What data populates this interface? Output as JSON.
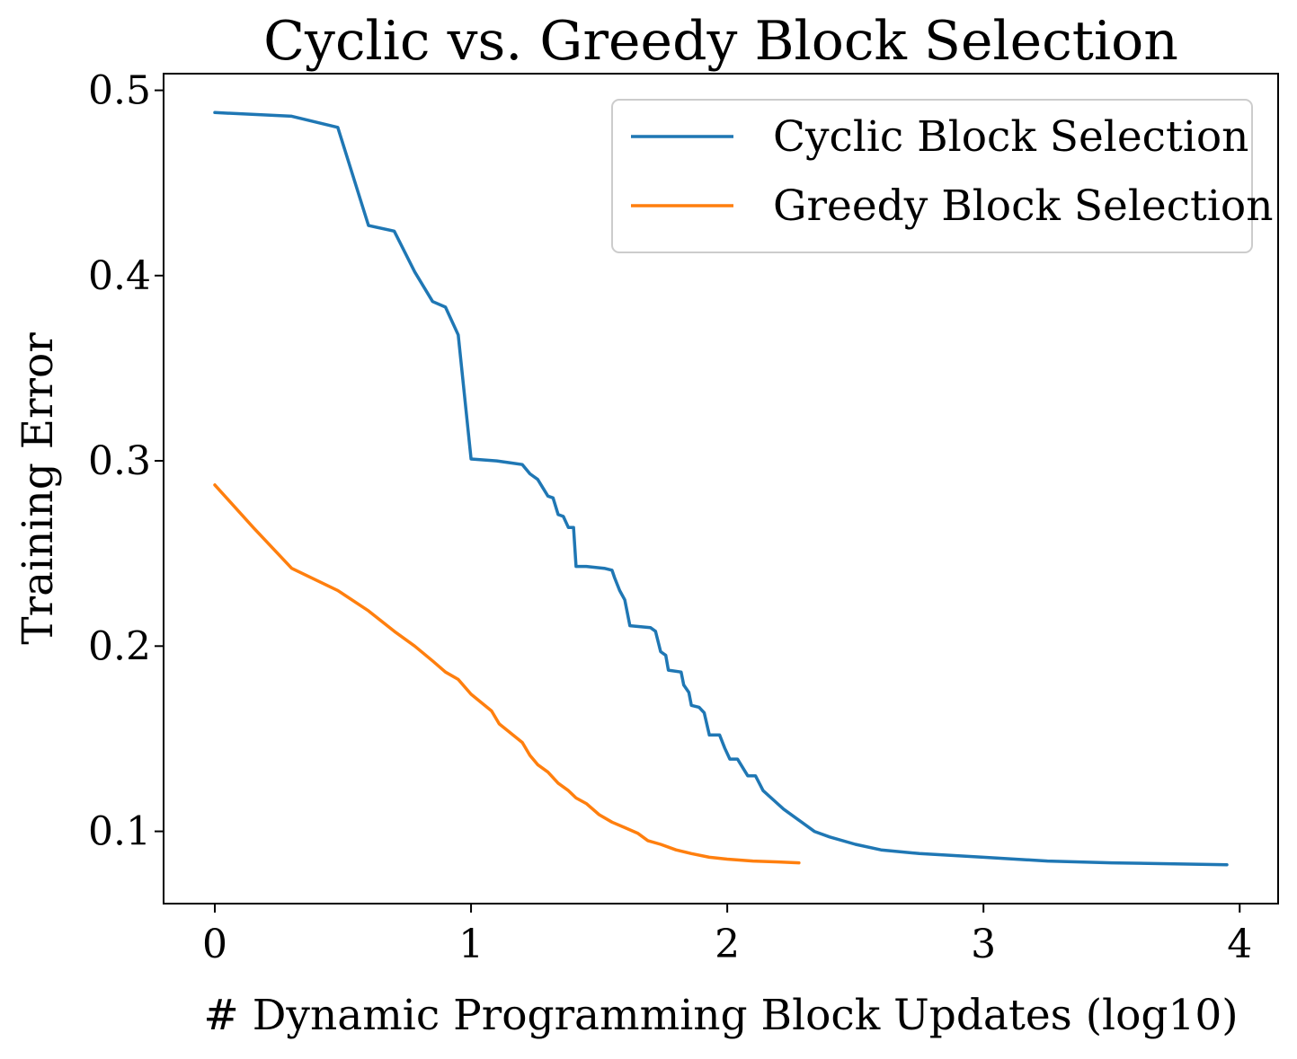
{
  "chart_data": {
    "type": "line",
    "title": "Cyclic vs. Greedy Block Selection",
    "xlabel": "# Dynamic Programming Block Updates (log10)",
    "ylabel": "Training Error",
    "xlim": [
      -0.2,
      4.15
    ],
    "ylim": [
      0.061,
      0.509
    ],
    "xticks": [
      0,
      1,
      2,
      3,
      4
    ],
    "xtick_labels": [
      "0",
      "1",
      "2",
      "3",
      "4"
    ],
    "yticks": [
      0.1,
      0.2,
      0.3,
      0.4,
      0.5
    ],
    "ytick_labels": [
      "0.1",
      "0.2",
      "0.3",
      "0.4",
      "0.5"
    ],
    "grid": false,
    "legend_position": "top-right",
    "series": [
      {
        "name": "Cyclic Block Selection",
        "color": "#1f77b4",
        "points": [
          [
            0.0,
            0.488
          ],
          [
            0.3,
            0.486
          ],
          [
            0.48,
            0.48
          ],
          [
            0.6,
            0.427
          ],
          [
            0.7,
            0.424
          ],
          [
            0.78,
            0.402
          ],
          [
            0.85,
            0.386
          ],
          [
            0.9,
            0.383
          ],
          [
            0.95,
            0.368
          ],
          [
            1.0,
            0.301
          ],
          [
            1.1,
            0.3
          ],
          [
            1.15,
            0.299
          ],
          [
            1.2,
            0.298
          ],
          [
            1.23,
            0.293
          ],
          [
            1.26,
            0.29
          ],
          [
            1.3,
            0.281
          ],
          [
            1.32,
            0.28
          ],
          [
            1.34,
            0.271
          ],
          [
            1.36,
            0.27
          ],
          [
            1.38,
            0.264
          ],
          [
            1.4,
            0.264
          ],
          [
            1.41,
            0.243
          ],
          [
            1.45,
            0.243
          ],
          [
            1.52,
            0.242
          ],
          [
            1.55,
            0.241
          ],
          [
            1.56,
            0.237
          ],
          [
            1.58,
            0.23
          ],
          [
            1.6,
            0.225
          ],
          [
            1.62,
            0.211
          ],
          [
            1.7,
            0.21
          ],
          [
            1.72,
            0.208
          ],
          [
            1.74,
            0.197
          ],
          [
            1.76,
            0.195
          ],
          [
            1.77,
            0.187
          ],
          [
            1.82,
            0.186
          ],
          [
            1.83,
            0.179
          ],
          [
            1.85,
            0.175
          ],
          [
            1.86,
            0.168
          ],
          [
            1.89,
            0.167
          ],
          [
            1.91,
            0.164
          ],
          [
            1.93,
            0.152
          ],
          [
            1.97,
            0.152
          ],
          [
            1.99,
            0.145
          ],
          [
            2.01,
            0.139
          ],
          [
            2.04,
            0.139
          ],
          [
            2.08,
            0.13
          ],
          [
            2.11,
            0.13
          ],
          [
            2.14,
            0.122
          ],
          [
            2.18,
            0.117
          ],
          [
            2.22,
            0.112
          ],
          [
            2.28,
            0.106
          ],
          [
            2.34,
            0.1
          ],
          [
            2.4,
            0.097
          ],
          [
            2.5,
            0.093
          ],
          [
            2.6,
            0.09
          ],
          [
            2.75,
            0.088
          ],
          [
            3.0,
            0.086
          ],
          [
            3.25,
            0.084
          ],
          [
            3.5,
            0.083
          ],
          [
            3.95,
            0.082
          ]
        ]
      },
      {
        "name": "Greedy Block Selection",
        "color": "#ff7f0e",
        "points": [
          [
            0.0,
            0.287
          ],
          [
            0.15,
            0.264
          ],
          [
            0.3,
            0.242
          ],
          [
            0.48,
            0.23
          ],
          [
            0.6,
            0.219
          ],
          [
            0.7,
            0.208
          ],
          [
            0.78,
            0.2
          ],
          [
            0.85,
            0.192
          ],
          [
            0.9,
            0.186
          ],
          [
            0.95,
            0.182
          ],
          [
            1.0,
            0.174
          ],
          [
            1.08,
            0.165
          ],
          [
            1.11,
            0.158
          ],
          [
            1.2,
            0.148
          ],
          [
            1.23,
            0.141
          ],
          [
            1.26,
            0.136
          ],
          [
            1.3,
            0.132
          ],
          [
            1.34,
            0.126
          ],
          [
            1.38,
            0.122
          ],
          [
            1.41,
            0.118
          ],
          [
            1.45,
            0.115
          ],
          [
            1.5,
            0.109
          ],
          [
            1.55,
            0.105
          ],
          [
            1.6,
            0.102
          ],
          [
            1.65,
            0.099
          ],
          [
            1.69,
            0.095
          ],
          [
            1.74,
            0.093
          ],
          [
            1.8,
            0.09
          ],
          [
            1.86,
            0.088
          ],
          [
            1.93,
            0.086
          ],
          [
            2.0,
            0.085
          ],
          [
            2.1,
            0.084
          ],
          [
            2.2,
            0.0835
          ],
          [
            2.28,
            0.083
          ]
        ]
      }
    ]
  }
}
